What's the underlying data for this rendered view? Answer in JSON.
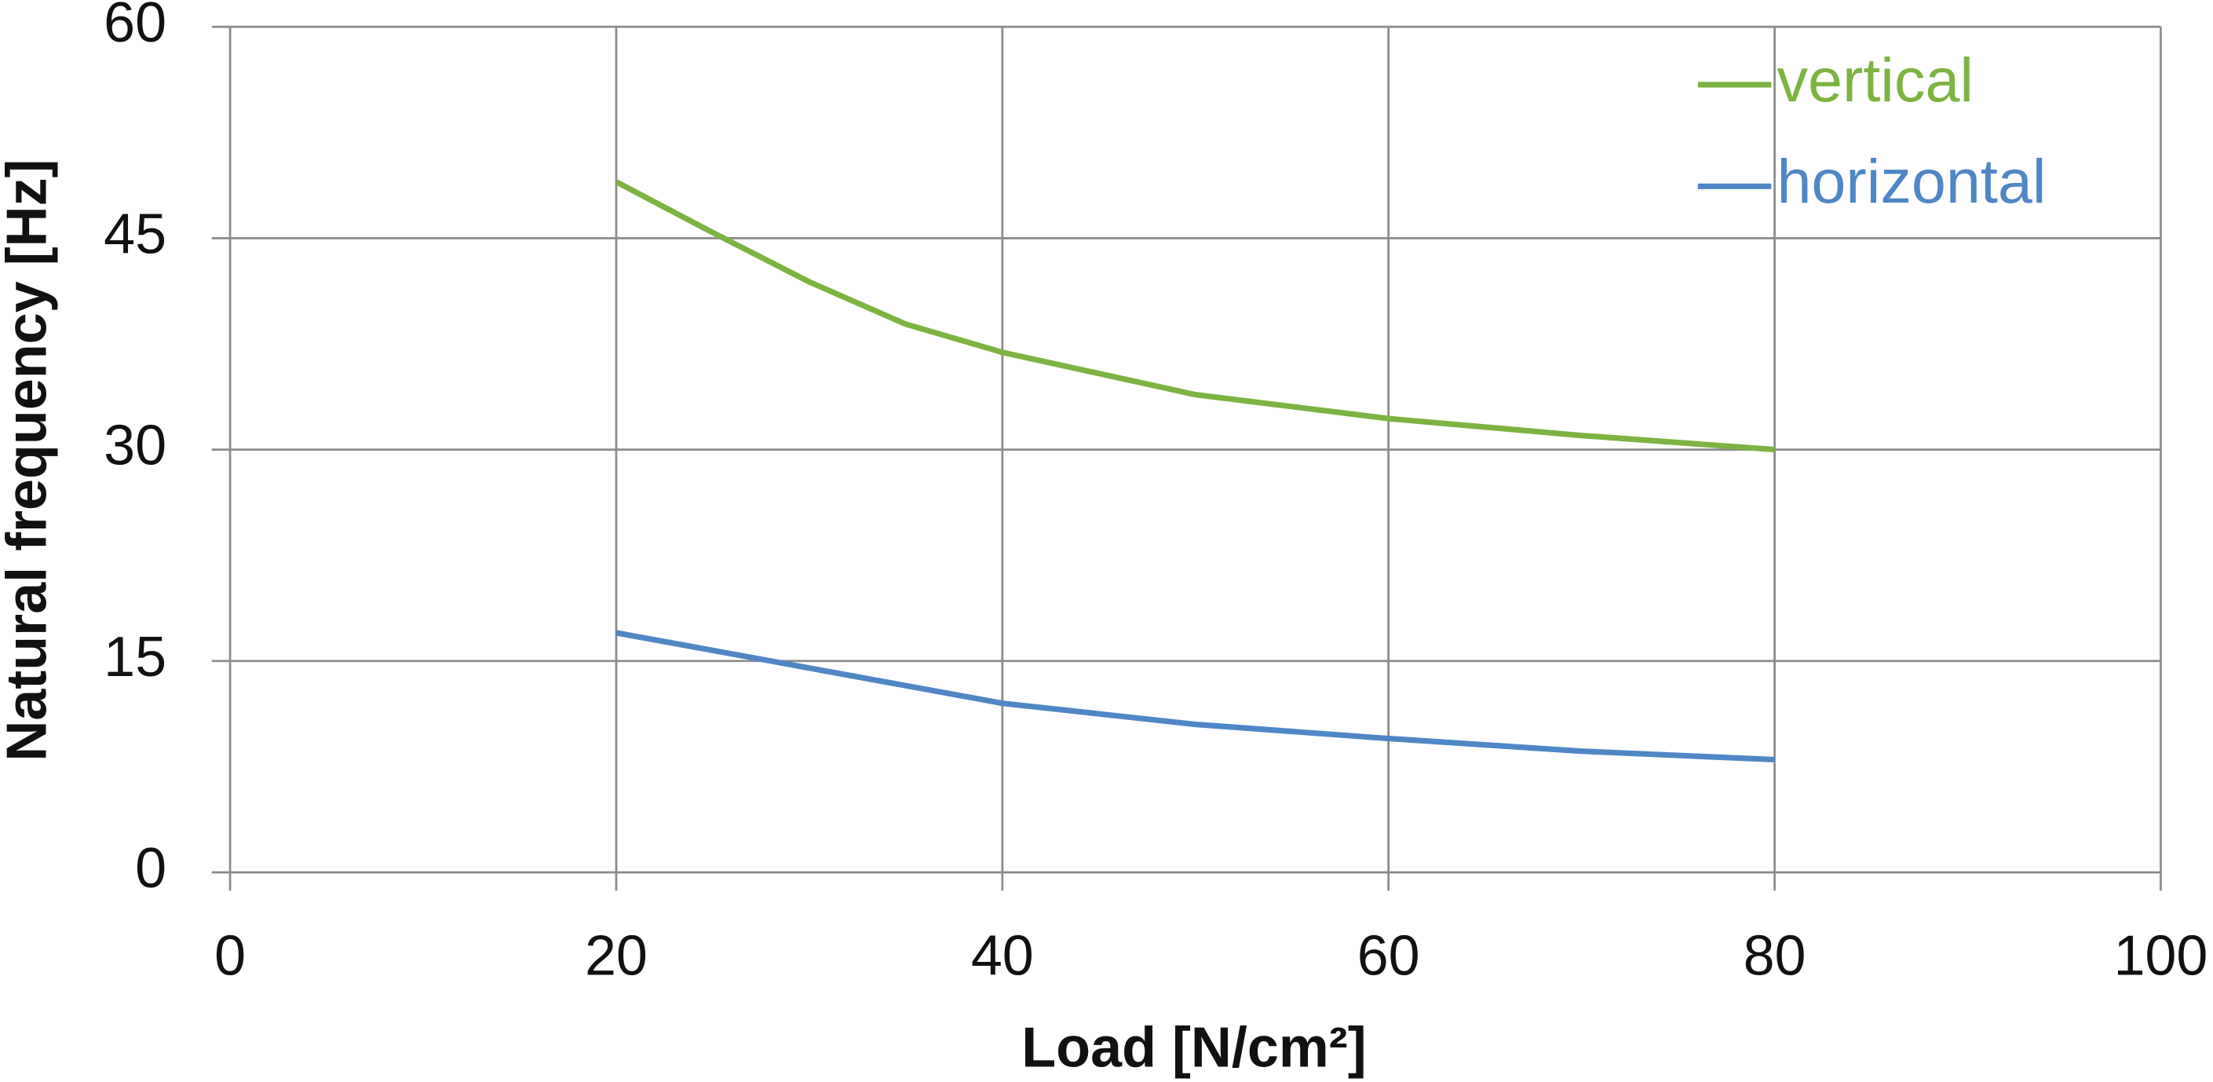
{
  "chart_data": {
    "type": "line",
    "xlabel": "Load [N/cm²]",
    "ylabel": "Natural frequency [Hz]",
    "series": [
      {
        "name": "vertical",
        "color": "#7cb342",
        "x": [
          20,
          25,
          30,
          35,
          40,
          50,
          60,
          70,
          80
        ],
        "values": [
          49,
          45.4,
          41.9,
          38.9,
          36.9,
          33.9,
          32.2,
          31.0,
          30
        ]
      },
      {
        "name": "horizontal",
        "color": "#4f86c6",
        "x": [
          20,
          30,
          40,
          50,
          60,
          70,
          80
        ],
        "values": [
          17,
          14.5,
          12,
          10.5,
          9.5,
          8.6,
          8
        ]
      }
    ],
    "xlim": [
      0,
      100
    ],
    "xticks": [
      0,
      20,
      40,
      60,
      80,
      100
    ],
    "ylim": [
      0,
      60
    ],
    "yticks": [
      0,
      15,
      30,
      45,
      60
    ],
    "grid": true,
    "legend": "upper right"
  }
}
